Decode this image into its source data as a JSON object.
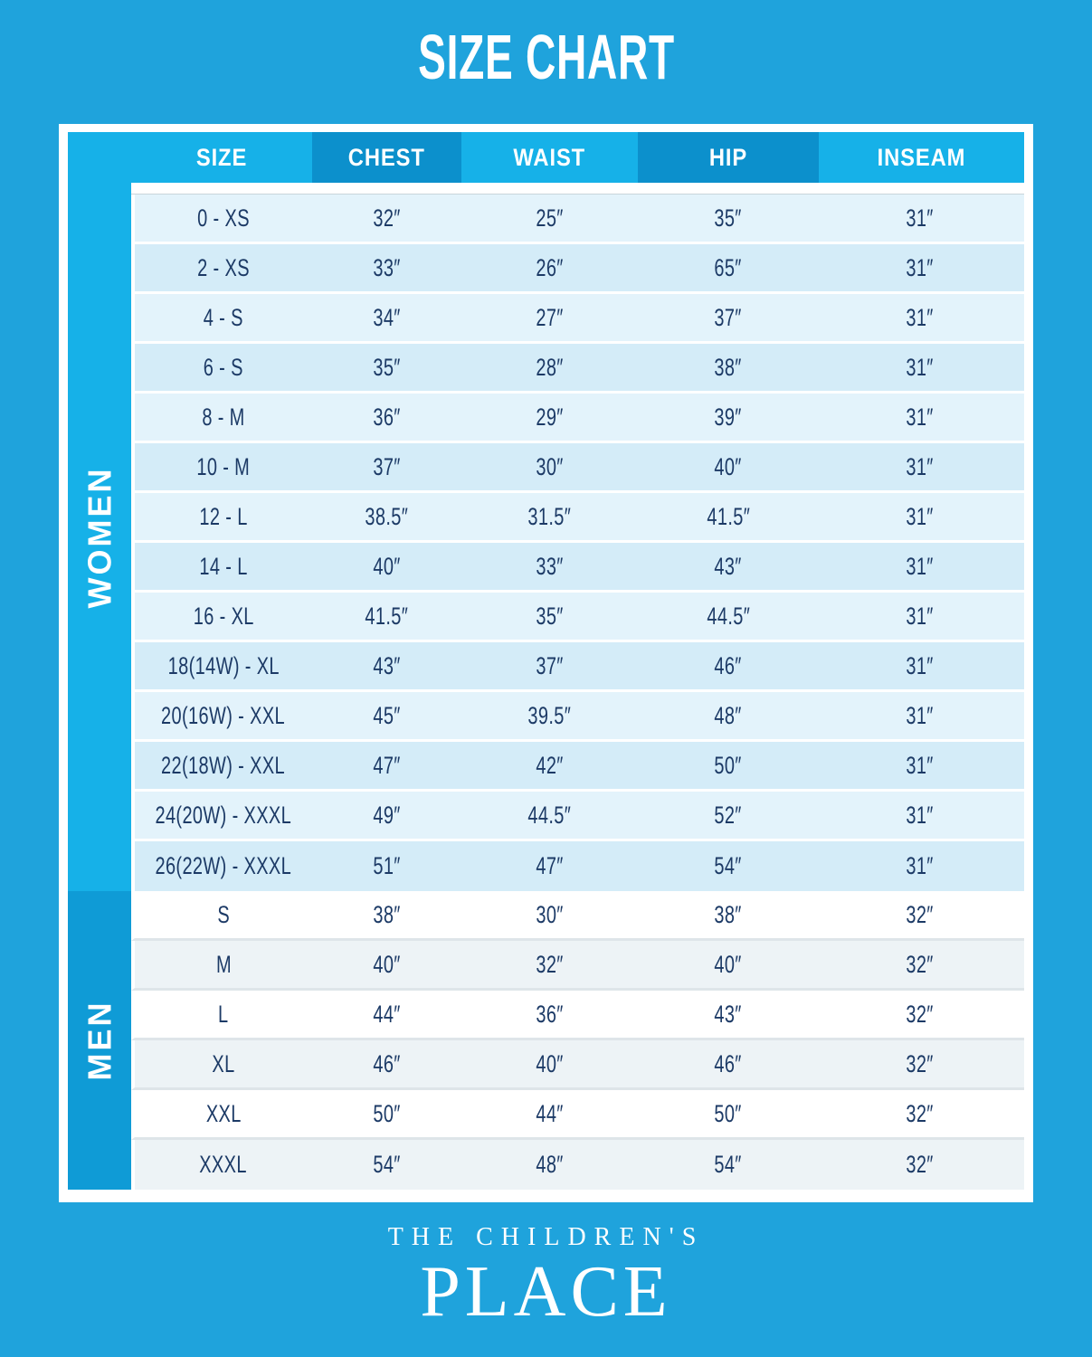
{
  "title": "SIZE CHART",
  "brand": {
    "line1": "THE CHILDREN'S",
    "line2": "PLACE"
  },
  "colors": {
    "background": "#1FA3DC",
    "header_light": "#16B1E8",
    "header_dark": "#0C90CC",
    "women_band": "#16B1E8",
    "men_band": "#0F9BD6",
    "women_row_light": "#E3F3FB",
    "women_row_dark": "#D4ECF8",
    "men_row_light": "#FFFFFF",
    "men_row_alt": "#EDF3F6",
    "text_navy": "#1C3A66"
  },
  "table": {
    "columns": [
      "SIZE",
      "CHEST",
      "WAIST",
      "HIP",
      "INSEAM"
    ],
    "sections": [
      {
        "label": "WOMEN",
        "rows": [
          {
            "size": "0 - XS",
            "chest": "32″",
            "waist": "25″",
            "hip": "35″",
            "inseam": "31″"
          },
          {
            "size": "2 - XS",
            "chest": "33″",
            "waist": "26″",
            "hip": "65″",
            "inseam": "31″"
          },
          {
            "size": "4 - S",
            "chest": "34″",
            "waist": "27″",
            "hip": "37″",
            "inseam": "31″"
          },
          {
            "size": "6 - S",
            "chest": "35″",
            "waist": "28″",
            "hip": "38″",
            "inseam": "31″"
          },
          {
            "size": "8 - M",
            "chest": "36″",
            "waist": "29″",
            "hip": "39″",
            "inseam": "31″"
          },
          {
            "size": "10 - M",
            "chest": "37″",
            "waist": "30″",
            "hip": "40″",
            "inseam": "31″"
          },
          {
            "size": "12 - L",
            "chest": "38.5″",
            "waist": "31.5″",
            "hip": "41.5″",
            "inseam": "31″"
          },
          {
            "size": "14 - L",
            "chest": "40″",
            "waist": "33″",
            "hip": "43″",
            "inseam": "31″"
          },
          {
            "size": "16 - XL",
            "chest": "41.5″",
            "waist": "35″",
            "hip": "44.5″",
            "inseam": "31″"
          },
          {
            "size": "18(14W) - XL",
            "chest": "43″",
            "waist": "37″",
            "hip": "46″",
            "inseam": "31″"
          },
          {
            "size": "20(16W) - XXL",
            "chest": "45″",
            "waist": "39.5″",
            "hip": "48″",
            "inseam": "31″"
          },
          {
            "size": "22(18W) - XXL",
            "chest": "47″",
            "waist": "42″",
            "hip": "50″",
            "inseam": "31″"
          },
          {
            "size": "24(20W) - XXXL",
            "chest": "49″",
            "waist": "44.5″",
            "hip": "52″",
            "inseam": "31″"
          },
          {
            "size": "26(22W) - XXXL",
            "chest": "51″",
            "waist": "47″",
            "hip": "54″",
            "inseam": "31″"
          }
        ]
      },
      {
        "label": "MEN",
        "rows": [
          {
            "size": "S",
            "chest": "38″",
            "waist": "30″",
            "hip": "38″",
            "inseam": "32″"
          },
          {
            "size": "M",
            "chest": "40″",
            "waist": "32″",
            "hip": "40″",
            "inseam": "32″"
          },
          {
            "size": "L",
            "chest": "44″",
            "waist": "36″",
            "hip": "43″",
            "inseam": "32″"
          },
          {
            "size": "XL",
            "chest": "46″",
            "waist": "40″",
            "hip": "46″",
            "inseam": "32″"
          },
          {
            "size": "XXL",
            "chest": "50″",
            "waist": "44″",
            "hip": "50″",
            "inseam": "32″"
          },
          {
            "size": "XXXL",
            "chest": "54″",
            "waist": "48″",
            "hip": "54″",
            "inseam": "32″"
          }
        ]
      }
    ]
  }
}
